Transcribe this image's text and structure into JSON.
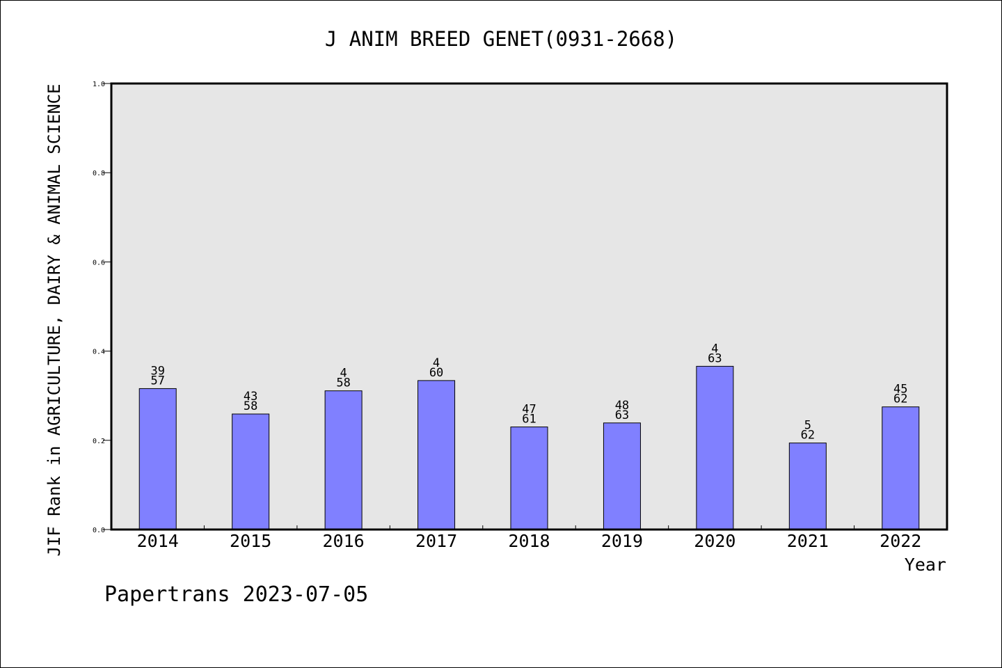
{
  "chart_data": {
    "type": "bar",
    "title": "J ANIM BREED GENET(0931-2668)",
    "xlabel": "Year",
    "ylabel": "JIF Rank in AGRICULTURE, DAIRY & ANIMAL SCIENCE",
    "ylim": [
      0,
      1.0
    ],
    "yticks": [
      "0.0",
      "0.2",
      "0.4",
      "0.6",
      "0.8",
      "1.0"
    ],
    "categories": [
      "2014",
      "2015",
      "2016",
      "2017",
      "2018",
      "2019",
      "2020",
      "2021",
      "2022"
    ],
    "values": [
      0.316,
      0.259,
      0.311,
      0.334,
      0.23,
      0.239,
      0.366,
      0.194,
      0.275
    ],
    "labels_top": [
      "39",
      "43",
      "4",
      "4",
      "47",
      "48",
      "4",
      "5",
      "45"
    ],
    "labels_bottom": [
      "57",
      "58",
      "58",
      "60",
      "61",
      "63",
      "63",
      "62",
      "62"
    ],
    "bar_color": "#8080ff",
    "plot_background": "#e6e6e6",
    "grid": false,
    "footer": "Papertrans 2023-07-05"
  }
}
